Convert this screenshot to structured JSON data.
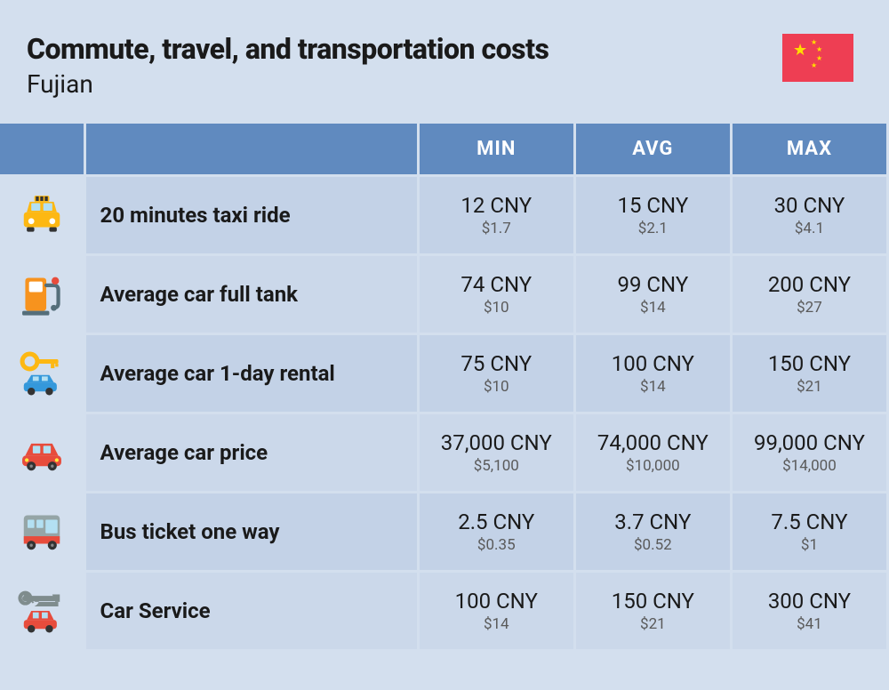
{
  "header": {
    "title": "Commute, travel, and transportation costs",
    "subtitle": "Fujian",
    "flag": "china"
  },
  "columns": {
    "min": "MIN",
    "avg": "AVG",
    "max": "MAX"
  },
  "rows": [
    {
      "icon": "taxi-icon",
      "label": "20 minutes taxi ride",
      "min": {
        "cny": "12 CNY",
        "usd": "$1.7"
      },
      "avg": {
        "cny": "15 CNY",
        "usd": "$2.1"
      },
      "max": {
        "cny": "30 CNY",
        "usd": "$4.1"
      }
    },
    {
      "icon": "fuel-pump-icon",
      "label": "Average car full tank",
      "min": {
        "cny": "74 CNY",
        "usd": "$10"
      },
      "avg": {
        "cny": "99 CNY",
        "usd": "$14"
      },
      "max": {
        "cny": "200 CNY",
        "usd": "$27"
      }
    },
    {
      "icon": "car-key-icon",
      "label": "Average car 1-day rental",
      "min": {
        "cny": "75 CNY",
        "usd": "$10"
      },
      "avg": {
        "cny": "100 CNY",
        "usd": "$14"
      },
      "max": {
        "cny": "150 CNY",
        "usd": "$21"
      }
    },
    {
      "icon": "car-icon",
      "label": "Average car price",
      "min": {
        "cny": "37,000 CNY",
        "usd": "$5,100"
      },
      "avg": {
        "cny": "74,000 CNY",
        "usd": "$10,000"
      },
      "max": {
        "cny": "99,000 CNY",
        "usd": "$14,000"
      }
    },
    {
      "icon": "bus-icon",
      "label": "Bus ticket one way",
      "min": {
        "cny": "2.5 CNY",
        "usd": "$0.35"
      },
      "avg": {
        "cny": "3.7 CNY",
        "usd": "$0.52"
      },
      "max": {
        "cny": "7.5 CNY",
        "usd": "$1"
      }
    },
    {
      "icon": "car-service-icon",
      "label": "Car Service",
      "min": {
        "cny": "100 CNY",
        "usd": "$14"
      },
      "avg": {
        "cny": "150 CNY",
        "usd": "$21"
      },
      "max": {
        "cny": "300 CNY",
        "usd": "$41"
      }
    }
  ],
  "styling": {
    "page_bg": "#d3dfee",
    "header_bg": "#608abf",
    "header_text": "#ffffff",
    "row_odd_bg": "#c3d2e7",
    "row_even_bg": "#cbd8ea",
    "title_fontsize": 32,
    "subtitle_fontsize": 28,
    "header_fontsize": 22,
    "label_fontsize": 24,
    "cny_fontsize": 24,
    "usd_fontsize": 17,
    "text_color": "#1a1a1a",
    "usd_color": "#5a5a5a",
    "flag_bg": "#ee3e53",
    "flag_star": "#ffde00",
    "icon_colors": {
      "taxi": "#fdb813",
      "fuel": "#f7931e",
      "rental_key": "#fdb813",
      "rental_car": "#3498db",
      "car": "#e74c3c",
      "bus": "#7f8c8d",
      "service_wrench": "#7f8c8d",
      "service_car": "#e74c3c"
    },
    "col_widths": {
      "icon": 95,
      "label": 375,
      "value": 176
    },
    "border_color": "#d3dfee",
    "border_width": 3
  }
}
